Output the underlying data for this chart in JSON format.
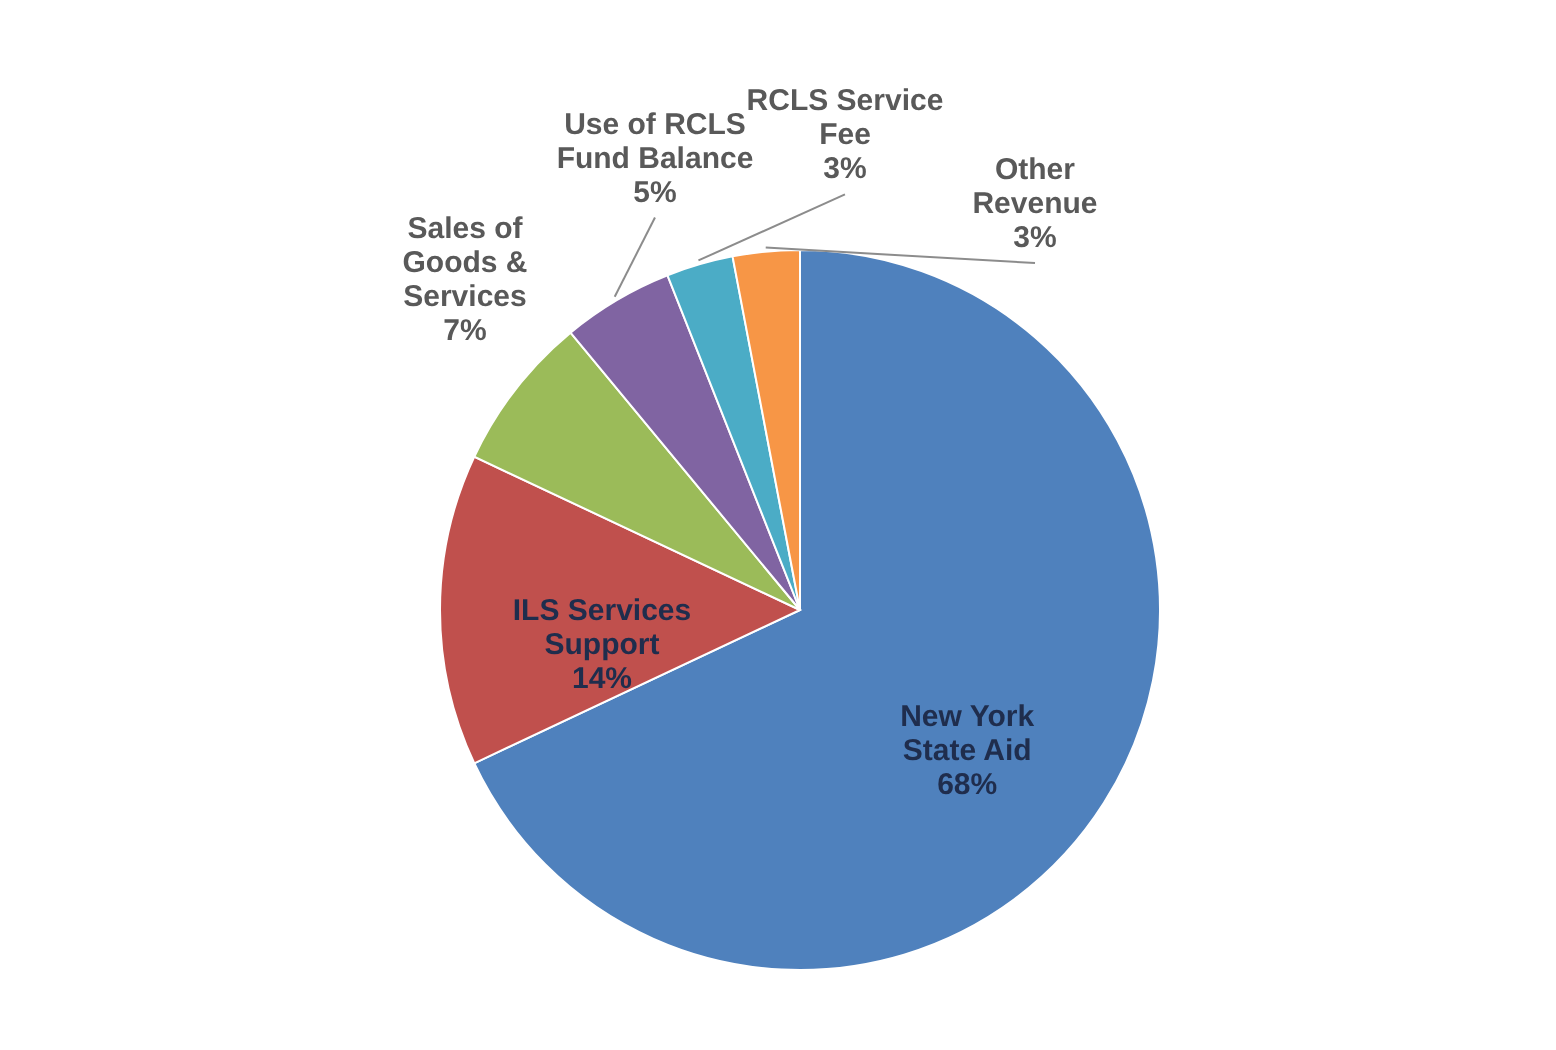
{
  "chart_data": {
    "type": "pie",
    "categories": [
      "New York State Aid",
      "ILS Services Support",
      "Sales of Goods & Services",
      "Use of RCLS Fund Balance",
      "RCLS Service Fee",
      "Other Revenue"
    ],
    "values": [
      68,
      14,
      7,
      5,
      3,
      3
    ],
    "colors": [
      "#4f81bd",
      "#c0504d",
      "#9bbb59",
      "#8064a2",
      "#4bacc6",
      "#f79646"
    ],
    "value_labels": [
      "68%",
      "14%",
      "7%",
      "5%",
      "3%",
      "3%"
    ]
  }
}
